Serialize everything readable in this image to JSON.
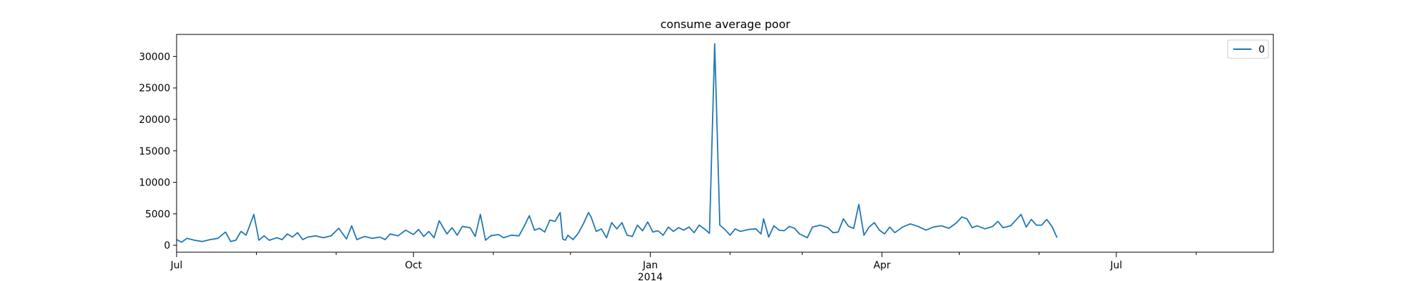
{
  "chart_data": {
    "type": "line",
    "title": "consume average poor",
    "xlabel": "",
    "ylabel": "",
    "x_range": [
      "2013-07-01",
      "2014-08-31"
    ],
    "ylim": [
      -1100,
      33500
    ],
    "y_ticks": [
      0,
      5000,
      10000,
      15000,
      20000,
      25000,
      30000
    ],
    "y_tick_labels": [
      "0",
      "5000",
      "10000",
      "15000",
      "20000",
      "25000",
      "30000"
    ],
    "x_major_ticks": [
      {
        "date": "2013-07-01",
        "label": "Jul",
        "sublabel": ""
      },
      {
        "date": "2013-10-01",
        "label": "Oct",
        "sublabel": ""
      },
      {
        "date": "2014-01-01",
        "label": "Jan",
        "sublabel": "2014"
      },
      {
        "date": "2014-04-01",
        "label": "Apr",
        "sublabel": ""
      },
      {
        "date": "2014-07-01",
        "label": "Jul",
        "sublabel": ""
      }
    ],
    "x_minor_ticks": [
      "2013-08-01",
      "2013-09-01",
      "2013-11-01",
      "2013-12-01",
      "2014-02-01",
      "2014-03-01",
      "2014-05-01",
      "2014-06-01",
      "2014-08-01"
    ],
    "grid": false,
    "legend": {
      "position": "top-right",
      "entries": [
        {
          "label": "0",
          "color": "#1f77b4"
        }
      ]
    },
    "series": [
      {
        "color": "#1f77b4",
        "points": [
          [
            "2013-07-01",
            900
          ],
          [
            "2013-07-03",
            500
          ],
          [
            "2013-07-05",
            1100
          ],
          [
            "2013-07-08",
            800
          ],
          [
            "2013-07-11",
            600
          ],
          [
            "2013-07-14",
            900
          ],
          [
            "2013-07-17",
            1100
          ],
          [
            "2013-07-20",
            2100
          ],
          [
            "2013-07-22",
            600
          ],
          [
            "2013-07-24",
            800
          ],
          [
            "2013-07-26",
            2200
          ],
          [
            "2013-07-28",
            1600
          ],
          [
            "2013-07-31",
            4900
          ],
          [
            "2013-08-02",
            800
          ],
          [
            "2013-08-04",
            1500
          ],
          [
            "2013-08-06",
            800
          ],
          [
            "2013-08-09",
            1200
          ],
          [
            "2013-08-11",
            900
          ],
          [
            "2013-08-13",
            1800
          ],
          [
            "2013-08-15",
            1300
          ],
          [
            "2013-08-17",
            2000
          ],
          [
            "2013-08-19",
            900
          ],
          [
            "2013-08-21",
            1300
          ],
          [
            "2013-08-24",
            1500
          ],
          [
            "2013-08-27",
            1200
          ],
          [
            "2013-08-30",
            1500
          ],
          [
            "2013-09-02",
            2700
          ],
          [
            "2013-09-05",
            1000
          ],
          [
            "2013-09-07",
            3100
          ],
          [
            "2013-09-09",
            900
          ],
          [
            "2013-09-12",
            1400
          ],
          [
            "2013-09-15",
            1100
          ],
          [
            "2013-09-18",
            1300
          ],
          [
            "2013-09-20",
            900
          ],
          [
            "2013-09-22",
            1800
          ],
          [
            "2013-09-25",
            1500
          ],
          [
            "2013-09-28",
            2400
          ],
          [
            "2013-10-01",
            1700
          ],
          [
            "2013-10-03",
            2500
          ],
          [
            "2013-10-05",
            1400
          ],
          [
            "2013-10-07",
            2200
          ],
          [
            "2013-10-09",
            1200
          ],
          [
            "2013-10-11",
            3900
          ],
          [
            "2013-10-14",
            1800
          ],
          [
            "2013-10-16",
            2800
          ],
          [
            "2013-10-18",
            1600
          ],
          [
            "2013-10-20",
            3000
          ],
          [
            "2013-10-23",
            2800
          ],
          [
            "2013-10-25",
            1400
          ],
          [
            "2013-10-27",
            4900
          ],
          [
            "2013-10-29",
            800
          ],
          [
            "2013-10-31",
            1500
          ],
          [
            "2013-11-03",
            1700
          ],
          [
            "2013-11-05",
            1200
          ],
          [
            "2013-11-08",
            1600
          ],
          [
            "2013-11-11",
            1500
          ],
          [
            "2013-11-13",
            3000
          ],
          [
            "2013-11-15",
            4700
          ],
          [
            "2013-11-17",
            2400
          ],
          [
            "2013-11-19",
            2700
          ],
          [
            "2013-11-21",
            2100
          ],
          [
            "2013-11-23",
            4000
          ],
          [
            "2013-11-25",
            3800
          ],
          [
            "2013-11-27",
            5200
          ],
          [
            "2013-11-28",
            1000
          ],
          [
            "2013-11-29",
            800
          ],
          [
            "2013-11-30",
            1600
          ],
          [
            "2013-12-02",
            900
          ],
          [
            "2013-12-04",
            1900
          ],
          [
            "2013-12-06",
            3400
          ],
          [
            "2013-12-08",
            5200
          ],
          [
            "2013-12-09",
            4500
          ],
          [
            "2013-12-11",
            2200
          ],
          [
            "2013-12-13",
            2600
          ],
          [
            "2013-12-15",
            1200
          ],
          [
            "2013-12-17",
            3600
          ],
          [
            "2013-12-19",
            2600
          ],
          [
            "2013-12-21",
            3600
          ],
          [
            "2013-12-23",
            1600
          ],
          [
            "2013-12-25",
            1400
          ],
          [
            "2013-12-27",
            3200
          ],
          [
            "2013-12-29",
            2300
          ],
          [
            "2013-12-31",
            3700
          ],
          [
            "2014-01-02",
            2100
          ],
          [
            "2014-01-04",
            2300
          ],
          [
            "2014-01-06",
            1600
          ],
          [
            "2014-01-08",
            2900
          ],
          [
            "2014-01-10",
            2200
          ],
          [
            "2014-01-12",
            2800
          ],
          [
            "2014-01-14",
            2400
          ],
          [
            "2014-01-16",
            2900
          ],
          [
            "2014-01-18",
            2000
          ],
          [
            "2014-01-20",
            3200
          ],
          [
            "2014-01-22",
            2600
          ],
          [
            "2014-01-24",
            1900
          ],
          [
            "2014-01-26",
            32000
          ],
          [
            "2014-01-28",
            3200
          ],
          [
            "2014-01-30",
            2500
          ],
          [
            "2014-02-01",
            1600
          ],
          [
            "2014-02-03",
            2600
          ],
          [
            "2014-02-05",
            2200
          ],
          [
            "2014-02-08",
            2500
          ],
          [
            "2014-02-11",
            2600
          ],
          [
            "2014-02-13",
            1800
          ],
          [
            "2014-02-14",
            4200
          ],
          [
            "2014-02-16",
            1300
          ],
          [
            "2014-02-18",
            3100
          ],
          [
            "2014-02-20",
            2400
          ],
          [
            "2014-02-22",
            2300
          ],
          [
            "2014-02-24",
            3000
          ],
          [
            "2014-02-26",
            2700
          ],
          [
            "2014-02-28",
            1800
          ],
          [
            "2014-03-03",
            1200
          ],
          [
            "2014-03-05",
            2900
          ],
          [
            "2014-03-08",
            3200
          ],
          [
            "2014-03-11",
            2800
          ],
          [
            "2014-03-13",
            2000
          ],
          [
            "2014-03-15",
            2100
          ],
          [
            "2014-03-17",
            4200
          ],
          [
            "2014-03-19",
            3000
          ],
          [
            "2014-03-21",
            2700
          ],
          [
            "2014-03-23",
            6500
          ],
          [
            "2014-03-25",
            1600
          ],
          [
            "2014-03-27",
            2900
          ],
          [
            "2014-03-29",
            3600
          ],
          [
            "2014-03-31",
            2400
          ],
          [
            "2014-04-02",
            1800
          ],
          [
            "2014-04-04",
            2900
          ],
          [
            "2014-04-06",
            2000
          ],
          [
            "2014-04-09",
            2900
          ],
          [
            "2014-04-12",
            3400
          ],
          [
            "2014-04-15",
            3000
          ],
          [
            "2014-04-18",
            2400
          ],
          [
            "2014-04-21",
            2900
          ],
          [
            "2014-04-24",
            3100
          ],
          [
            "2014-04-27",
            2700
          ],
          [
            "2014-04-30",
            3600
          ],
          [
            "2014-05-02",
            4500
          ],
          [
            "2014-05-04",
            4200
          ],
          [
            "2014-05-06",
            2800
          ],
          [
            "2014-05-08",
            3100
          ],
          [
            "2014-05-11",
            2600
          ],
          [
            "2014-05-14",
            3000
          ],
          [
            "2014-05-16",
            3800
          ],
          [
            "2014-05-18",
            2800
          ],
          [
            "2014-05-21",
            3100
          ],
          [
            "2014-05-23",
            4000
          ],
          [
            "2014-05-25",
            4900
          ],
          [
            "2014-05-27",
            2900
          ],
          [
            "2014-05-29",
            4100
          ],
          [
            "2014-05-31",
            3200
          ],
          [
            "2014-06-02",
            3200
          ],
          [
            "2014-06-04",
            4100
          ],
          [
            "2014-06-06",
            3000
          ],
          [
            "2014-06-08",
            1200
          ]
        ]
      }
    ]
  }
}
